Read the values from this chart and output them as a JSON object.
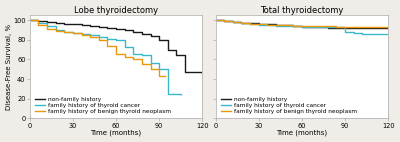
{
  "title_left": "Lobe thyroidectomy",
  "title_right": "Total thyroidectomy",
  "xlabel": "Time (months)",
  "ylabel": "Disease-Free Survival, %",
  "colors": {
    "non_family": "#1a1a1a",
    "thyroid_cancer": "#38b8c8",
    "benign_neoplasm": "#e8980a"
  },
  "legend_labels": [
    "non-family history",
    "family history of thyroid cancer",
    "family history of benign thyroid neoplasm"
  ],
  "left": {
    "non_family": {
      "x": [
        0,
        6,
        12,
        18,
        24,
        30,
        36,
        42,
        48,
        54,
        60,
        66,
        72,
        78,
        84,
        90,
        96,
        102,
        108,
        120
      ],
      "y": [
        100,
        99,
        98,
        97,
        96,
        96,
        95,
        94,
        93,
        92,
        91,
        90,
        88,
        86,
        84,
        80,
        70,
        65,
        47,
        46
      ]
    },
    "thyroid_cancer": {
      "x": [
        0,
        6,
        12,
        18,
        24,
        30,
        36,
        42,
        48,
        54,
        60,
        66,
        72,
        78,
        84,
        90,
        96,
        105
      ],
      "y": [
        100,
        97,
        94,
        90,
        88,
        87,
        86,
        85,
        83,
        81,
        80,
        73,
        66,
        65,
        56,
        50,
        25,
        24
      ]
    },
    "benign_neoplasm": {
      "x": [
        0,
        6,
        12,
        18,
        24,
        30,
        36,
        42,
        48,
        54,
        60,
        66,
        72,
        78,
        84,
        90,
        95
      ],
      "y": [
        100,
        95,
        91,
        89,
        88,
        87,
        85,
        83,
        80,
        74,
        66,
        63,
        60,
        55,
        50,
        43,
        43
      ]
    }
  },
  "right": {
    "non_family": {
      "x": [
        0,
        6,
        12,
        18,
        24,
        30,
        36,
        42,
        48,
        54,
        60,
        66,
        72,
        78,
        84,
        90,
        96,
        102,
        108,
        120
      ],
      "y": [
        100,
        99,
        98,
        97,
        97,
        96,
        96,
        95,
        95,
        94,
        93,
        93,
        93,
        92,
        92,
        92,
        92,
        92,
        92,
        92
      ]
    },
    "thyroid_cancer": {
      "x": [
        0,
        6,
        12,
        18,
        24,
        30,
        36,
        42,
        48,
        54,
        60,
        66,
        72,
        78,
        84,
        90,
        96,
        102,
        108,
        120
      ],
      "y": [
        100,
        99,
        98,
        97,
        96,
        95,
        95,
        94,
        94,
        94,
        93,
        93,
        93,
        93,
        93,
        88,
        87,
        86,
        86,
        86
      ]
    },
    "benign_neoplasm": {
      "x": [
        0,
        6,
        12,
        18,
        24,
        30,
        36,
        42,
        48,
        54,
        60,
        66,
        72,
        78,
        84,
        90,
        96,
        102,
        108,
        120
      ],
      "y": [
        100,
        99,
        98,
        97,
        96,
        96,
        95,
        95,
        95,
        94,
        94,
        94,
        94,
        94,
        93,
        93,
        93,
        93,
        93,
        92
      ]
    }
  },
  "xlim": [
    0,
    120
  ],
  "ylim": [
    0,
    105
  ],
  "xticks": [
    0,
    30,
    60,
    90,
    120
  ],
  "yticks": [
    0,
    20,
    40,
    60,
    80,
    100
  ],
  "linewidth": 1.0,
  "fontsize_title": 6.0,
  "fontsize_axis": 5.0,
  "fontsize_tick": 4.8,
  "fontsize_legend": 4.2,
  "bg_color": "#ffffff",
  "fig_bg_color": "#f0ede8"
}
